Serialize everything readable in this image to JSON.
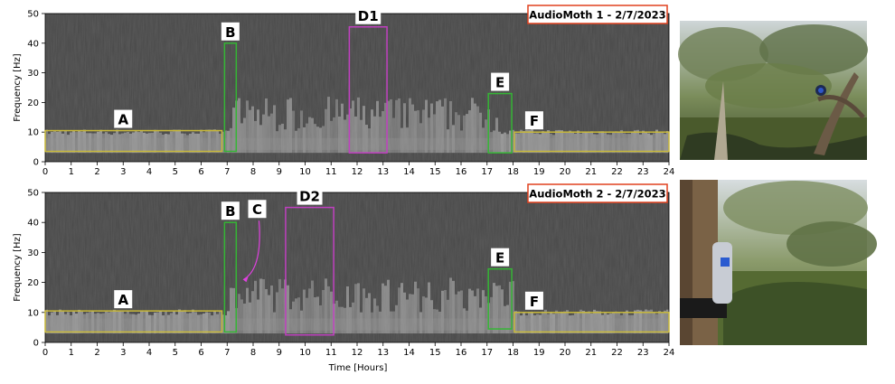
{
  "chart_data": [
    {
      "type": "heatmap",
      "title": "AudioMoth 1 - 2/7/2023",
      "ylabel": "Frequency [Hz]",
      "xlabel": "",
      "xlim": [
        0,
        24
      ],
      "ylim": [
        0,
        50
      ],
      "xticks": [
        "0",
        "1",
        "2",
        "3",
        "4",
        "5",
        "6",
        "7",
        "8",
        "9",
        "10",
        "11",
        "12",
        "13",
        "14",
        "15",
        "16",
        "17",
        "18",
        "19",
        "20",
        "21",
        "22",
        "23",
        "24"
      ],
      "yticks": [
        "0",
        "10",
        "20",
        "30",
        "40",
        "50"
      ],
      "annotations": [
        {
          "label": "A",
          "color": "#c8b93a",
          "x": [
            0,
            6.8
          ],
          "y": [
            3.5,
            10.5
          ]
        },
        {
          "label": "B",
          "color": "#35b535",
          "x": [
            6.9,
            7.35
          ],
          "y": [
            3.5,
            40
          ]
        },
        {
          "label": "D1",
          "color": "#c040c0",
          "x": [
            11.7,
            13.15
          ],
          "y": [
            3,
            45.5
          ]
        },
        {
          "label": "E",
          "color": "#35b535",
          "x": [
            17.05,
            17.95
          ],
          "y": [
            3,
            23
          ]
        },
        {
          "label": "F",
          "color": "#c8b93a",
          "x": [
            18.05,
            24
          ],
          "y": [
            3.5,
            10
          ]
        }
      ]
    },
    {
      "type": "heatmap",
      "title": "AudioMoth 2 - 2/7/2023",
      "ylabel": "Frequency [Hz]",
      "xlabel": "Time [Hours]",
      "xlim": [
        0,
        24
      ],
      "ylim": [
        0,
        50
      ],
      "xticks": [
        "0",
        "1",
        "2",
        "3",
        "4",
        "5",
        "6",
        "7",
        "8",
        "9",
        "10",
        "11",
        "12",
        "13",
        "14",
        "15",
        "16",
        "17",
        "18",
        "19",
        "20",
        "21",
        "22",
        "23",
        "24"
      ],
      "yticks": [
        "0",
        "10",
        "20",
        "30",
        "40",
        "50"
      ],
      "annotations": [
        {
          "label": "A",
          "color": "#c8b93a",
          "x": [
            0,
            6.8
          ],
          "y": [
            3.5,
            10.5
          ]
        },
        {
          "label": "B",
          "color": "#35b535",
          "x": [
            6.9,
            7.35
          ],
          "y": [
            3.5,
            40
          ]
        },
        {
          "label": "C",
          "color": "#e040e0",
          "arrow_to": [
            7.6,
            21
          ]
        },
        {
          "label": "D2",
          "color": "#c040c0",
          "x": [
            9.25,
            11.1
          ],
          "y": [
            2.5,
            45
          ]
        },
        {
          "label": "E",
          "color": "#35b535",
          "x": [
            17.05,
            17.95
          ],
          "y": [
            4.5,
            24.5
          ]
        },
        {
          "label": "F",
          "color": "#c8b93a",
          "x": [
            18.05,
            24
          ],
          "y": [
            3.5,
            10
          ]
        }
      ]
    }
  ],
  "photos": [
    {
      "subject": "creek-bank-with-device-on-tree"
    },
    {
      "subject": "device-mounted-on-tree-trunk"
    }
  ],
  "colors": {
    "spec_bg": "#474747",
    "title_border": "#e0401e"
  }
}
